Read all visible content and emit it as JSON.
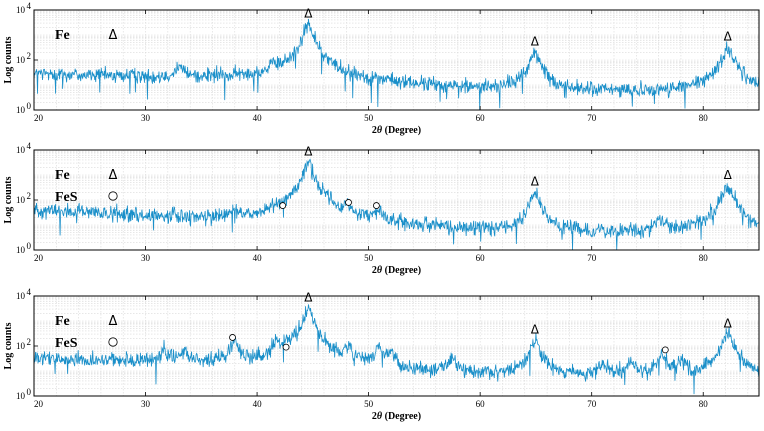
{
  "chart_data": [
    {
      "type": "line",
      "xlabel_prefix": "2",
      "xlabel_theta": "θ",
      "xlabel_suffix": " (Degree)",
      "ylabel": "Log counts",
      "y_scale": "log",
      "xlim": [
        20,
        85
      ],
      "ylim": [
        1,
        10000
      ],
      "x_ticks": [
        20,
        30,
        40,
        50,
        60,
        70,
        80
      ],
      "y_ticks": [
        {
          "base": "10",
          "exp": "0",
          "value": 1
        },
        {
          "base": "10",
          "exp": "2",
          "value": 100
        },
        {
          "base": "10",
          "exp": "4",
          "value": 10000
        }
      ],
      "grid": true,
      "legend": [
        {
          "label": "Fe",
          "symbol": "Δ"
        }
      ],
      "series": [
        {
          "color": "#1a8fc9",
          "baseline": [
            [
              20,
              28
            ],
            [
              30,
              21
            ],
            [
              40,
              18
            ],
            [
              43,
              22
            ],
            [
              47,
              13
            ],
            [
              55,
              8
            ],
            [
              65,
              5
            ],
            [
              75,
              5
            ],
            [
              85,
              4
            ]
          ],
          "noise": 0.35,
          "peaks": [
            {
              "x": 33,
              "y": 30,
              "w": 0.4
            },
            {
              "x": 41.5,
              "y": 20,
              "w": 0.3
            },
            {
              "x": 44.6,
              "y": 2500,
              "w": 0.35
            },
            {
              "x": 64.9,
              "y": 170,
              "w": 0.4
            },
            {
              "x": 82.2,
              "y": 260,
              "w": 0.45
            }
          ]
        }
      ],
      "markers": [
        {
          "kind": "delta",
          "x": 44.6,
          "y": 5000
        },
        {
          "kind": "delta",
          "x": 64.9,
          "y": 380
        },
        {
          "kind": "delta",
          "x": 82.2,
          "y": 600
        }
      ]
    },
    {
      "type": "line",
      "xlabel_prefix": "2",
      "xlabel_theta": "θ",
      "xlabel_suffix": " (Degree)",
      "ylabel": "Log counts",
      "y_scale": "log",
      "xlim": [
        20,
        85
      ],
      "ylim": [
        1,
        10000
      ],
      "x_ticks": [
        20,
        30,
        40,
        50,
        60,
        70,
        80
      ],
      "y_ticks": [
        {
          "base": "10",
          "exp": "0",
          "value": 1
        },
        {
          "base": "10",
          "exp": "2",
          "value": 100
        },
        {
          "base": "10",
          "exp": "4",
          "value": 10000
        }
      ],
      "grid": true,
      "legend": [
        {
          "label": "Fe",
          "symbol": "Δ"
        },
        {
          "label": "FeS",
          "symbol": "○"
        }
      ],
      "series": [
        {
          "color": "#1a8fc9",
          "baseline": [
            [
              20,
              40
            ],
            [
              30,
              22
            ],
            [
              40,
              15
            ],
            [
              43,
              20
            ],
            [
              47,
              10
            ],
            [
              55,
              6
            ],
            [
              65,
              4
            ],
            [
              75,
              4
            ],
            [
              85,
              3
            ]
          ],
          "noise": 0.35,
          "peaks": [
            {
              "x": 38,
              "y": 14,
              "w": 0.3
            },
            {
              "x": 41.7,
              "y": 18,
              "w": 0.3
            },
            {
              "x": 42.5,
              "y": 22,
              "w": 0.25
            },
            {
              "x": 44.6,
              "y": 3000,
              "w": 0.35
            },
            {
              "x": 48.2,
              "y": 30,
              "w": 0.3
            },
            {
              "x": 50.8,
              "y": 22,
              "w": 0.3
            },
            {
              "x": 64.9,
              "y": 160,
              "w": 0.4
            },
            {
              "x": 76.3,
              "y": 10,
              "w": 0.4
            },
            {
              "x": 82.2,
              "y": 300,
              "w": 0.45
            }
          ]
        }
      ],
      "markers": [
        {
          "kind": "delta",
          "x": 44.6,
          "y": 6000
        },
        {
          "kind": "circle",
          "x": 42.3,
          "y": 60
        },
        {
          "kind": "circle",
          "x": 48.2,
          "y": 80
        },
        {
          "kind": "circle",
          "x": 50.7,
          "y": 60
        },
        {
          "kind": "delta",
          "x": 64.9,
          "y": 380
        },
        {
          "kind": "delta",
          "x": 82.2,
          "y": 700
        }
      ]
    },
    {
      "type": "line",
      "xlabel_prefix": "2",
      "xlabel_theta": "θ",
      "xlabel_suffix": " (Degree)",
      "ylabel": "Log counts",
      "y_scale": "log",
      "xlim": [
        20,
        85
      ],
      "ylim": [
        1,
        10000
      ],
      "x_ticks": [
        20,
        30,
        40,
        50,
        60,
        70,
        80
      ],
      "y_ticks": [
        {
          "base": "10",
          "exp": "0",
          "value": 1
        },
        {
          "base": "10",
          "exp": "2",
          "value": 100
        },
        {
          "base": "10",
          "exp": "4",
          "value": 10000
        }
      ],
      "grid": true,
      "legend": [
        {
          "label": "Fe",
          "symbol": "Δ"
        },
        {
          "label": "FeS",
          "symbol": "○"
        }
      ],
      "series": [
        {
          "color": "#1a8fc9",
          "baseline": [
            [
              20,
              30
            ],
            [
              30,
              24
            ],
            [
              40,
              20
            ],
            [
              43,
              22
            ],
            [
              47,
              10
            ],
            [
              55,
              7
            ],
            [
              65,
              5
            ],
            [
              75,
              5
            ],
            [
              85,
              4
            ]
          ],
          "noise": 0.35,
          "peaks": [
            {
              "x": 31.7,
              "y": 50,
              "w": 0.25
            },
            {
              "x": 33.5,
              "y": 40,
              "w": 0.25
            },
            {
              "x": 38,
              "y": 160,
              "w": 0.25
            },
            {
              "x": 41.7,
              "y": 130,
              "w": 0.25
            },
            {
              "x": 42.7,
              "y": 50,
              "w": 0.25
            },
            {
              "x": 44.6,
              "y": 2800,
              "w": 0.35
            },
            {
              "x": 48.2,
              "y": 60,
              "w": 0.3
            },
            {
              "x": 50.9,
              "y": 80,
              "w": 0.3
            },
            {
              "x": 52,
              "y": 45,
              "w": 0.3
            },
            {
              "x": 57.5,
              "y": 20,
              "w": 0.4
            },
            {
              "x": 64.9,
              "y": 140,
              "w": 0.4
            },
            {
              "x": 71,
              "y": 12,
              "w": 0.4
            },
            {
              "x": 73.5,
              "y": 18,
              "w": 0.4
            },
            {
              "x": 76.3,
              "y": 40,
              "w": 0.3
            },
            {
              "x": 78,
              "y": 25,
              "w": 0.3
            },
            {
              "x": 82.2,
              "y": 250,
              "w": 0.45
            }
          ]
        }
      ],
      "markers": [
        {
          "kind": "delta",
          "x": 44.6,
          "y": 6000
        },
        {
          "kind": "circle",
          "x": 37.8,
          "y": 220
        },
        {
          "kind": "circle",
          "x": 42.6,
          "y": 90
        },
        {
          "kind": "delta",
          "x": 64.9,
          "y": 320
        },
        {
          "kind": "circle",
          "x": 76.6,
          "y": 70
        },
        {
          "kind": "delta",
          "x": 82.2,
          "y": 560
        }
      ]
    }
  ]
}
